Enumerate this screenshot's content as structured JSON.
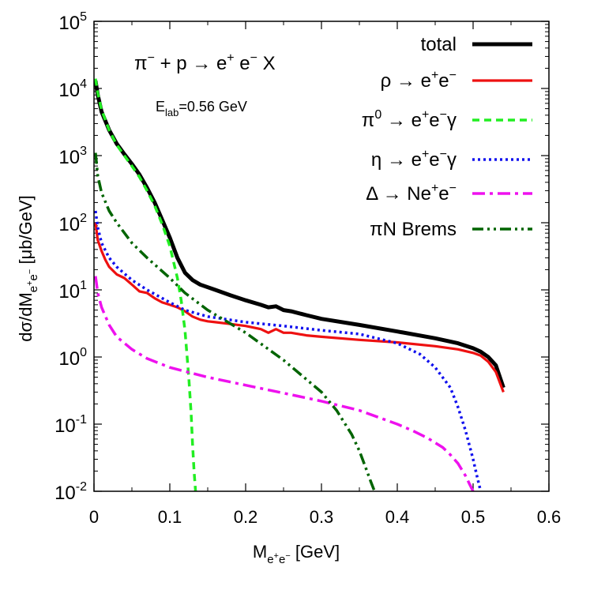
{
  "chart_data": {
    "type": "line",
    "title": "π⁻ + p → e⁺ e⁻ X",
    "annotation": "E_lab=0.56 GeV",
    "xlabel": "M_{e+e−} [GeV]",
    "ylabel": "dσ/dM_{e+e−} [μb/GeV]",
    "xlim": [
      0,
      0.6
    ],
    "ylim": [
      0.01,
      100000
    ],
    "yscale": "log",
    "legend_position": "top-right",
    "x_ticks": [
      "0",
      "0.1",
      "0.2",
      "0.3",
      "0.4",
      "0.5",
      "0.6"
    ],
    "y_ticks": [
      {
        "base": "10",
        "exp": "-2"
      },
      {
        "base": "10",
        "exp": "-1"
      },
      {
        "base": "10",
        "exp": "0"
      },
      {
        "base": "10",
        "exp": "1"
      },
      {
        "base": "10",
        "exp": "2"
      },
      {
        "base": "10",
        "exp": "3"
      },
      {
        "base": "10",
        "exp": "4"
      },
      {
        "base": "10",
        "exp": "5"
      }
    ],
    "series": [
      {
        "name": "total",
        "color": "#000000",
        "dash": "solid",
        "x": [
          0.002,
          0.005,
          0.01,
          0.02,
          0.03,
          0.04,
          0.05,
          0.06,
          0.07,
          0.08,
          0.09,
          0.1,
          0.11,
          0.12,
          0.13,
          0.14,
          0.16,
          0.18,
          0.2,
          0.22,
          0.23,
          0.24,
          0.25,
          0.26,
          0.28,
          0.3,
          0.35,
          0.4,
          0.45,
          0.48,
          0.5,
          0.51,
          0.52,
          0.53,
          0.54
        ],
        "y": [
          13000,
          8000,
          4500,
          2400,
          1500,
          1050,
          750,
          520,
          330,
          200,
          110,
          60,
          30,
          18,
          14,
          12,
          10,
          8.3,
          7,
          6,
          5.5,
          5.7,
          5,
          4.8,
          4.2,
          3.7,
          3,
          2.4,
          1.9,
          1.6,
          1.35,
          1.2,
          1,
          0.75,
          0.35
        ]
      },
      {
        "name": "ρ → e⁺e⁻",
        "color": "#ee1111",
        "dash": "solid",
        "x": [
          0.002,
          0.005,
          0.01,
          0.015,
          0.02,
          0.03,
          0.04,
          0.05,
          0.06,
          0.07,
          0.08,
          0.09,
          0.1,
          0.11,
          0.12,
          0.13,
          0.14,
          0.15,
          0.16,
          0.18,
          0.2,
          0.22,
          0.23,
          0.24,
          0.25,
          0.26,
          0.28,
          0.3,
          0.35,
          0.4,
          0.45,
          0.48,
          0.5,
          0.51,
          0.52,
          0.53,
          0.54
        ],
        "y": [
          100,
          55,
          38,
          28,
          22,
          17,
          15,
          12,
          9.5,
          9,
          7.5,
          6.5,
          6,
          5.5,
          4.8,
          4,
          3.6,
          3.4,
          3.3,
          3.1,
          2.9,
          2.6,
          2.3,
          2.6,
          2.3,
          2.3,
          2.1,
          2,
          1.8,
          1.65,
          1.45,
          1.3,
          1.15,
          1.05,
          0.85,
          0.6,
          0.3
        ]
      },
      {
        "name": "π⁰ → e⁺e⁻γ",
        "color": "#22ee22",
        "dash": "dashed",
        "x": [
          0.002,
          0.005,
          0.01,
          0.02,
          0.03,
          0.04,
          0.05,
          0.06,
          0.07,
          0.08,
          0.09,
          0.1,
          0.11,
          0.115,
          0.12,
          0.125,
          0.128,
          0.13,
          0.132,
          0.134
        ],
        "y": [
          14000,
          8500,
          4800,
          2400,
          1450,
          1000,
          700,
          480,
          300,
          180,
          95,
          45,
          15,
          7,
          2.5,
          0.5,
          0.15,
          0.05,
          0.02,
          0.01
        ]
      },
      {
        "name": "η → e⁺e⁻γ",
        "color": "#1111ee",
        "dash": "dotted",
        "x": [
          0.002,
          0.005,
          0.01,
          0.02,
          0.03,
          0.05,
          0.07,
          0.1,
          0.12,
          0.15,
          0.2,
          0.25,
          0.3,
          0.35,
          0.4,
          0.43,
          0.45,
          0.47,
          0.48,
          0.49,
          0.5,
          0.505,
          0.51
        ],
        "y": [
          150,
          85,
          50,
          30,
          22,
          14,
          10,
          6.5,
          5,
          4,
          3.3,
          2.9,
          2.5,
          2.2,
          1.6,
          1.1,
          0.7,
          0.35,
          0.18,
          0.08,
          0.03,
          0.017,
          0.01
        ]
      },
      {
        "name": "Δ → Ne⁺e⁻",
        "color": "#ee11ee",
        "dash": "dashdot",
        "x": [
          0.002,
          0.005,
          0.01,
          0.02,
          0.03,
          0.05,
          0.07,
          0.1,
          0.15,
          0.2,
          0.25,
          0.3,
          0.35,
          0.4,
          0.42,
          0.44,
          0.46,
          0.47,
          0.48,
          0.49,
          0.495,
          0.5
        ],
        "y": [
          16,
          9,
          5.5,
          3,
          2,
          1.3,
          0.95,
          0.7,
          0.5,
          0.38,
          0.29,
          0.22,
          0.16,
          0.1,
          0.08,
          0.062,
          0.045,
          0.035,
          0.026,
          0.017,
          0.013,
          0.01
        ]
      },
      {
        "name": "πN Brems",
        "color": "#006400",
        "dash": "dashdotdot",
        "x": [
          0.002,
          0.005,
          0.01,
          0.02,
          0.03,
          0.05,
          0.07,
          0.1,
          0.12,
          0.15,
          0.2,
          0.25,
          0.3,
          0.32,
          0.34,
          0.35,
          0.36,
          0.365,
          0.37
        ],
        "y": [
          1100,
          500,
          280,
          150,
          100,
          50,
          30,
          15,
          9,
          5,
          2.3,
          0.9,
          0.3,
          0.16,
          0.07,
          0.04,
          0.02,
          0.014,
          0.01
        ]
      }
    ]
  }
}
